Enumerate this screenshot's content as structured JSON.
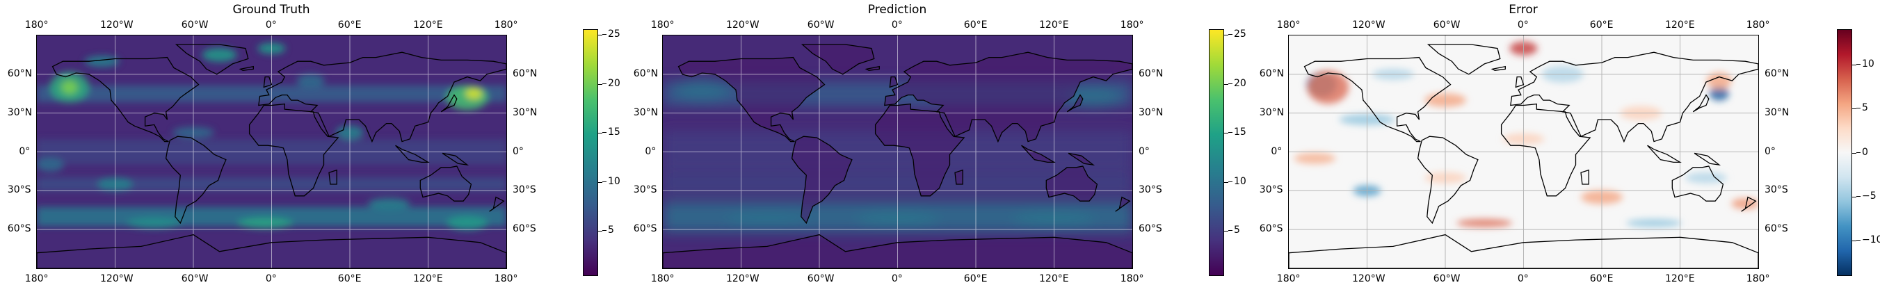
{
  "panels": [
    {
      "title": "Ground Truth",
      "colormap": "viridis",
      "colorbar": {
        "ticks": [
          "25",
          "20",
          "15",
          "10",
          "5"
        ],
        "values": [
          25,
          20,
          15,
          10,
          5
        ],
        "range": [
          0.5,
          25.5
        ]
      }
    },
    {
      "title": "Prediction",
      "colormap": "viridis",
      "colorbar": {
        "ticks": [
          "25",
          "20",
          "15",
          "10",
          "5"
        ],
        "values": [
          25,
          20,
          15,
          10,
          5
        ],
        "range": [
          0.5,
          25.5
        ]
      }
    },
    {
      "title": "Error",
      "colormap": "RdBu_r",
      "colorbar": {
        "ticks": [
          "10",
          "5",
          "0",
          "−5",
          "−10"
        ],
        "values": [
          10,
          5,
          0,
          -5,
          -10
        ],
        "range": [
          -14,
          14
        ]
      }
    }
  ],
  "axes": {
    "lon_labels": [
      "180°",
      "120°W",
      "60°W",
      "0°",
      "60°E",
      "120°E",
      "180°"
    ],
    "lat_labels": [
      "60°N",
      "30°N",
      "0°",
      "30°S",
      "60°S"
    ]
  },
  "colors": {
    "viridis_low": "#440154",
    "viridis_mid": "#21918c",
    "viridis_high": "#fde725",
    "error_neg": "#2166ac",
    "error_zero": "#f7f7f7",
    "error_pos": "#b2182b",
    "gridline": "#ffffff",
    "coastline": "#000000"
  }
}
